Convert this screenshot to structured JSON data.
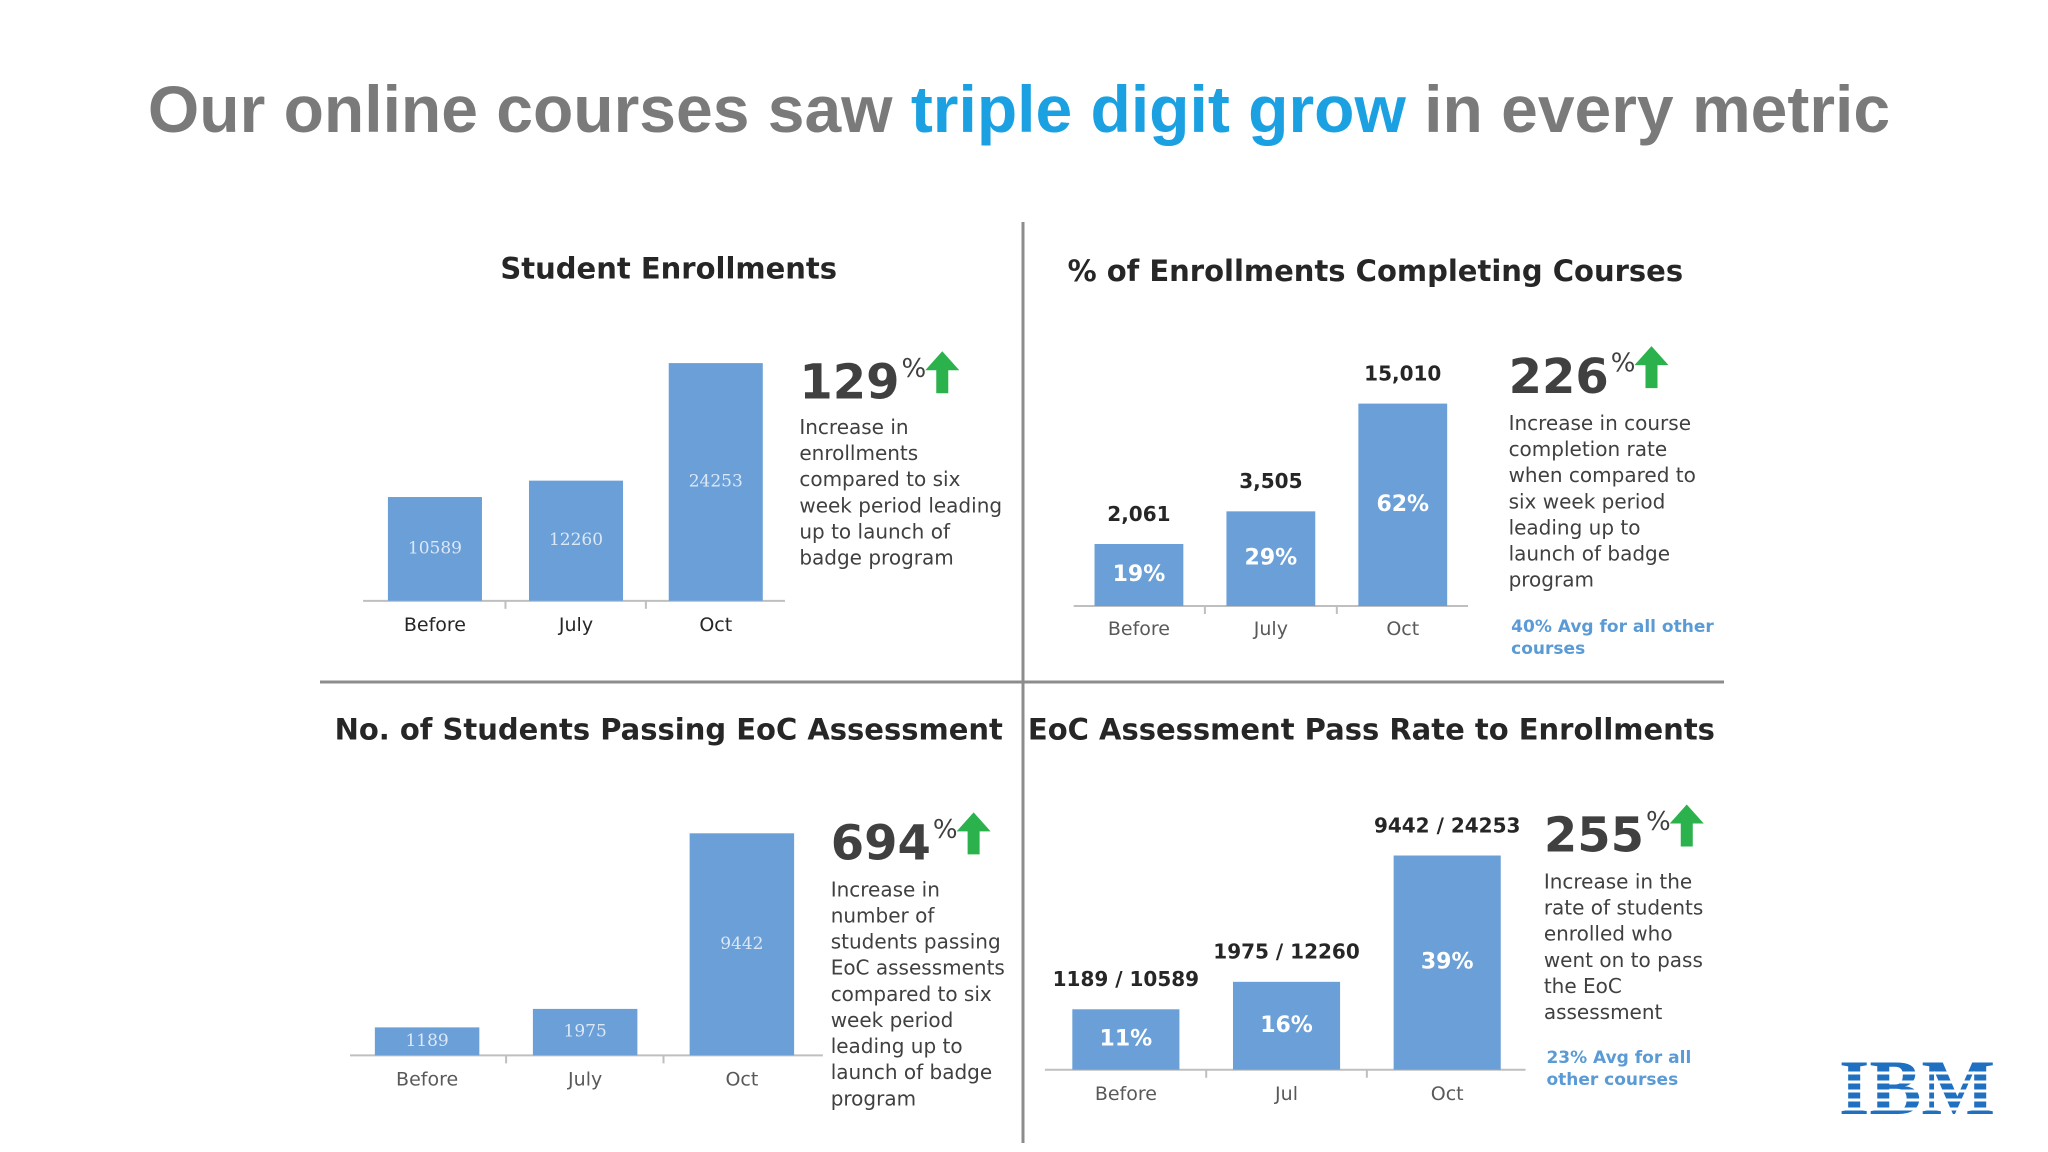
{
  "title_parts": [
    "Our online courses saw ",
    "triple digit grow",
    " in every metric"
  ],
  "logo": "IBM",
  "chart_data": [
    {
      "type": "bar",
      "title": "Student Enrollments",
      "categories": [
        "Before",
        "July",
        "Oct"
      ],
      "values": [
        10589,
        12260,
        24253
      ],
      "color": "#6a9fd8",
      "highlight": "129",
      "highlight_unit": "%",
      "description": [
        "Increase in",
        "enrollments",
        "compared to six",
        "week period leading",
        "up to launch of",
        "badge program"
      ]
    },
    {
      "type": "bar",
      "title": "% of Enrollments Completing Courses",
      "categories": [
        "Before",
        "July",
        "Oct"
      ],
      "values": [
        19,
        29,
        62
      ],
      "value_labels": [
        "19%",
        "29%",
        "62%"
      ],
      "top_labels": [
        "2,061",
        "3,505",
        "15,010"
      ],
      "color": "#6a9fd8",
      "highlight": "226",
      "highlight_unit": "%",
      "description": [
        "Increase in course",
        "completion rate",
        "when compared to",
        "six week period",
        "leading up to",
        "launch of badge",
        "program"
      ],
      "note": [
        "40% Avg for all other",
        "courses"
      ]
    },
    {
      "type": "bar",
      "title": "No. of Students Passing EoC Assessment",
      "categories": [
        "Before",
        "July",
        "Oct"
      ],
      "values": [
        1189,
        1975,
        9442
      ],
      "color": "#6a9fd8",
      "highlight": "694",
      "highlight_unit": "%",
      "description": [
        "Increase in",
        "number of",
        "students passing",
        "EoC assessments",
        "compared to six",
        "week period",
        "leading up to",
        "launch of badge",
        "program"
      ]
    },
    {
      "type": "bar",
      "title": "EoC Assessment Pass Rate to Enrollments",
      "categories": [
        "Before",
        "Jul",
        "Oct"
      ],
      "values": [
        11,
        16,
        39
      ],
      "value_labels": [
        "11%",
        "16%",
        "39%"
      ],
      "top_labels": [
        "1189 / 10589",
        "1975 / 12260",
        "9442 / 24253"
      ],
      "color": "#6a9fd8",
      "highlight": "255",
      "highlight_unit": "%",
      "description": [
        "Increase in the",
        "rate of students",
        "enrolled who",
        "went on to pass",
        "the EoC",
        "assessment"
      ],
      "note": [
        "23% Avg for all",
        "other courses"
      ]
    }
  ]
}
